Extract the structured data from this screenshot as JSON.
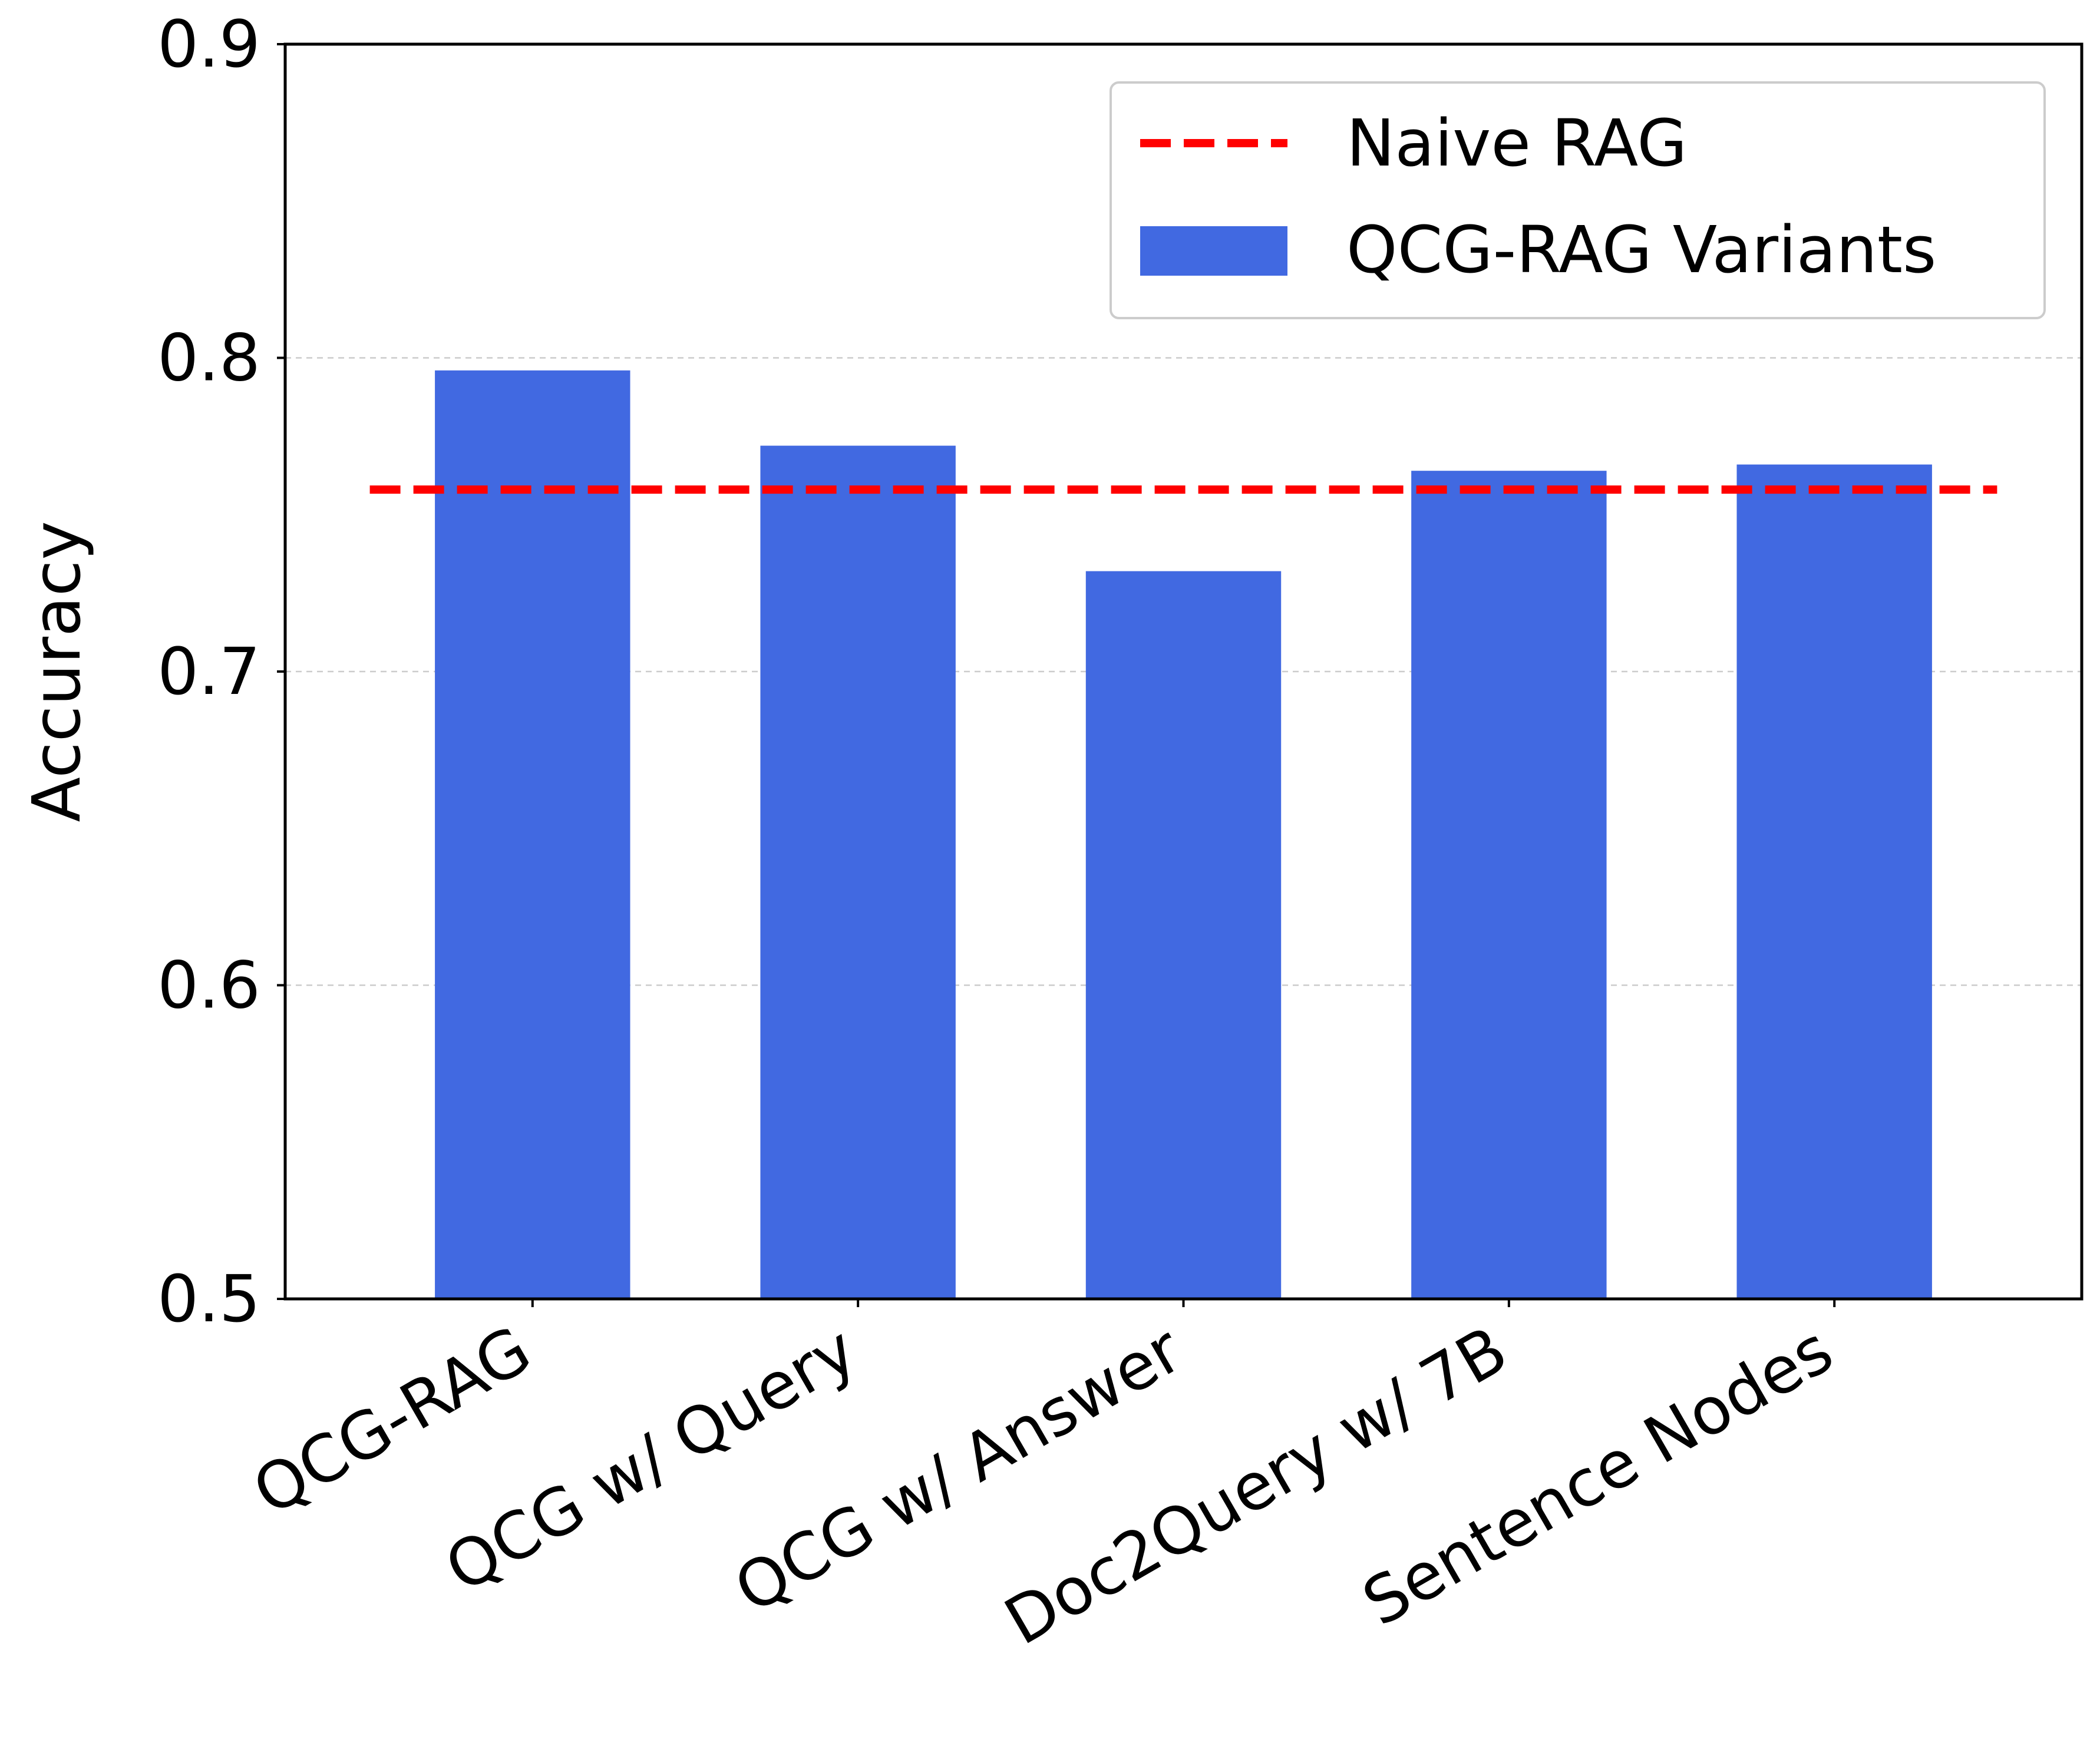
{
  "chart_data": {
    "type": "bar",
    "title": "",
    "xlabel": "",
    "ylabel": "Accuracy",
    "ylim": [
      0.5,
      0.9
    ],
    "yticks": [
      "0.5",
      "0.6",
      "0.7",
      "0.8",
      "0.9"
    ],
    "grid": "horizontal dashed",
    "categories": [
      "QCG-RAG",
      "QCG w/ Query",
      "QCG w/ Answer",
      "Doc2Query w/ 7B",
      "Sentence Nodes"
    ],
    "series": [
      {
        "name": "QCG-RAG Variants",
        "values": [
          0.796,
          0.772,
          0.732,
          0.764,
          0.766
        ],
        "color": "#4169E1"
      }
    ],
    "reference_lines": [
      {
        "name": "Naive RAG",
        "value": 0.758,
        "color": "#FF0000",
        "style": "dashed"
      }
    ],
    "legend": {
      "position": "top-right",
      "entries": [
        "Naive RAG",
        "QCG-RAG Variants"
      ]
    }
  }
}
